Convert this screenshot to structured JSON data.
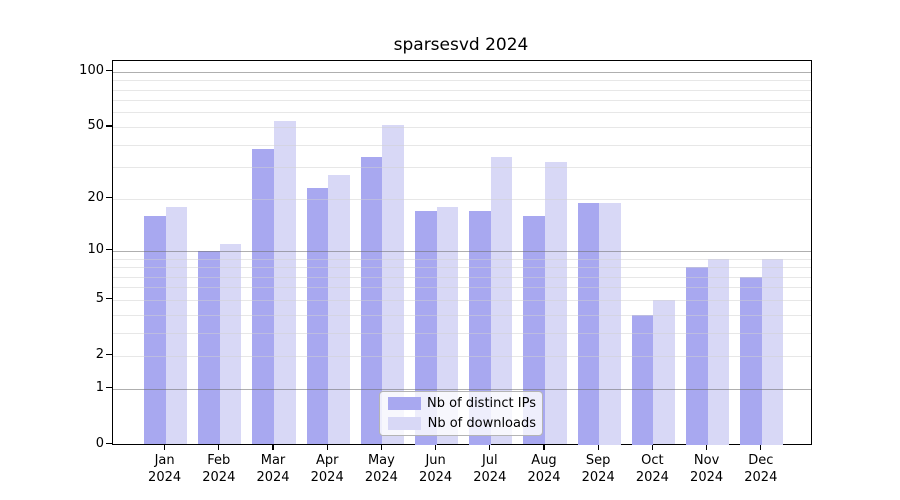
{
  "title": "sparsesvd 2024",
  "chart_data": {
    "type": "bar",
    "title": "sparsesvd 2024",
    "categories": [
      "Jan 2024",
      "Feb 2024",
      "Mar 2024",
      "Apr 2024",
      "May 2024",
      "Jun 2024",
      "Jul 2024",
      "Aug 2024",
      "Sep 2024",
      "Oct 2024",
      "Nov 2024",
      "Dec 2024"
    ],
    "series": [
      {
        "name": "Nb of distinct IPs",
        "color": "#a8a8f0",
        "values": [
          16,
          10,
          38,
          23,
          34,
          17,
          17,
          16,
          19,
          4,
          8,
          7
        ]
      },
      {
        "name": "Nb of downloads",
        "color": "#d8d8f6",
        "values": [
          18,
          11,
          54,
          27,
          51,
          18,
          34,
          32,
          19,
          5,
          9,
          9
        ]
      }
    ],
    "xlabel": "",
    "ylabel": "",
    "yscale": "log1p",
    "ylim": [
      0,
      114
    ],
    "ytick_labels": [
      "0",
      "1",
      "2",
      "5",
      "10",
      "20",
      "50",
      "100"
    ],
    "grid": true,
    "legend_position": "lower center"
  },
  "colors": {
    "bar_distinct_ips": "#a8a8f0",
    "bar_downloads": "#d8d8f6",
    "grid_major": "#b0b0b0",
    "grid_minor": "#e9e9e9",
    "axis": "#000000",
    "background": "#ffffff"
  }
}
